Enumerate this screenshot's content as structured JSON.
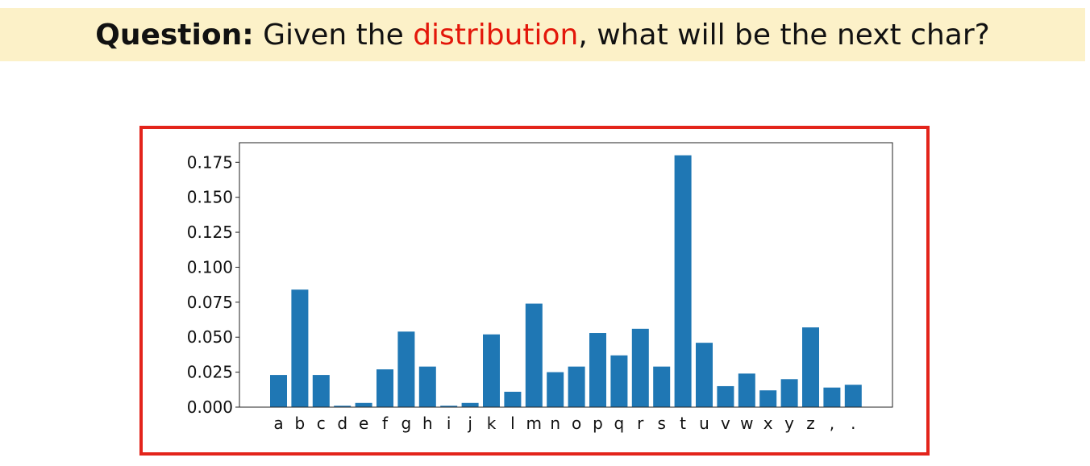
{
  "question": {
    "label": "Question:",
    "text_before": " Given the ",
    "highlight": "distribution",
    "text_after": ", what will be the next char?"
  },
  "colors": {
    "bar": "#1f77b4",
    "highlight": "#e3170a",
    "frame": "#e3241b",
    "banner": "#fcf1c8"
  },
  "chart_data": {
    "type": "bar",
    "categories": [
      "a",
      "b",
      "c",
      "d",
      "e",
      "f",
      "g",
      "h",
      "i",
      "j",
      "k",
      "l",
      "m",
      "n",
      "o",
      "p",
      "q",
      "r",
      "s",
      "t",
      "u",
      "v",
      "w",
      "x",
      "y",
      "z",
      ",",
      "."
    ],
    "values": [
      0.023,
      0.084,
      0.023,
      0.001,
      0.003,
      0.027,
      0.054,
      0.029,
      0.001,
      0.003,
      0.052,
      0.011,
      0.074,
      0.025,
      0.029,
      0.053,
      0.037,
      0.056,
      0.029,
      0.18,
      0.046,
      0.015,
      0.024,
      0.012,
      0.02,
      0.057,
      0.014,
      0.016
    ],
    "title": "",
    "xlabel": "",
    "ylabel": "",
    "ylim": [
      0,
      0.189
    ],
    "yticks": [
      0.0,
      0.025,
      0.05,
      0.075,
      0.1,
      0.125,
      0.15,
      0.175
    ],
    "ytick_labels": [
      "0.000",
      "0.025",
      "0.050",
      "0.075",
      "0.100",
      "0.125",
      "0.150",
      "0.175"
    ],
    "grid": false,
    "legend": "none"
  }
}
